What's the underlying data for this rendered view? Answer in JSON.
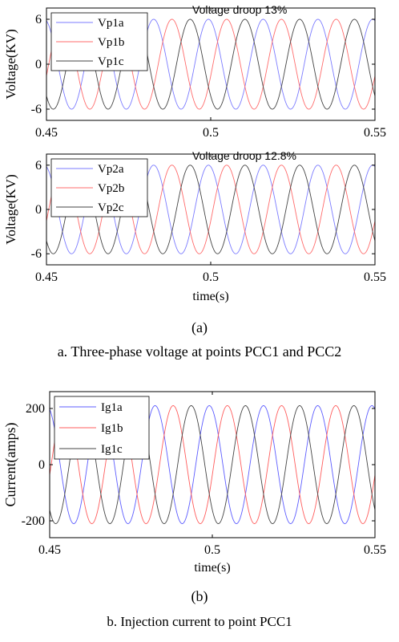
{
  "charts": [
    {
      "type": "line",
      "ylabel": "Voltage(KV)",
      "xlabel": "",
      "xlim": [
        0.45,
        0.55
      ],
      "ylim": [
        -7.5,
        7.5
      ],
      "xticks": [
        0.45,
        0.5,
        0.55
      ],
      "xtick_labels": [
        "0.45",
        "0.5",
        "0.55"
      ],
      "yticks": [
        -6,
        0,
        6
      ],
      "ytick_labels": [
        "-6",
        "0",
        "6"
      ],
      "annotation": "Voltage droop 13%",
      "legend_position": "top-left",
      "series": [
        {
          "name": "Vp1a",
          "color": "#7b7bff",
          "amplitude": 6.0,
          "frequency_hz": 60,
          "phase_deg": 105
        },
        {
          "name": "Vp1b",
          "color": "#ff6b6b",
          "amplitude": 6.0,
          "frequency_hz": 60,
          "phase_deg": -15
        },
        {
          "name": "Vp1c",
          "color": "#444444",
          "amplitude": 6.0,
          "frequency_hz": 60,
          "phase_deg": -135
        }
      ]
    },
    {
      "type": "line",
      "ylabel": "Voltage(KV)",
      "xlabel": "time(s)",
      "xlim": [
        0.45,
        0.55
      ],
      "ylim": [
        -7.5,
        7.5
      ],
      "xticks": [
        0.45,
        0.5,
        0.55
      ],
      "xtick_labels": [
        "0.45",
        "0.5",
        "0.55"
      ],
      "yticks": [
        -6,
        0,
        6
      ],
      "ytick_labels": [
        "-6",
        "0",
        "6"
      ],
      "annotation": "Voltage droop 12.8%",
      "legend_position": "top-left",
      "series": [
        {
          "name": "Vp2a",
          "color": "#7b7bff",
          "amplitude": 6.0,
          "frequency_hz": 60,
          "phase_deg": 105
        },
        {
          "name": "Vp2b",
          "color": "#ff6b6b",
          "amplitude": 6.0,
          "frequency_hz": 60,
          "phase_deg": -15
        },
        {
          "name": "Vp2c",
          "color": "#444444",
          "amplitude": 6.0,
          "frequency_hz": 60,
          "phase_deg": -135
        }
      ]
    },
    {
      "type": "line",
      "ylabel": "Current(amps)",
      "xlabel": "time(s)",
      "xlim": [
        0.45,
        0.55
      ],
      "ylim": [
        -260,
        260
      ],
      "xticks": [
        0.45,
        0.5,
        0.55
      ],
      "xtick_labels": [
        "0.45",
        "0.5",
        "0.55"
      ],
      "yticks": [
        -200,
        0,
        200
      ],
      "ytick_labels": [
        "-200",
        "0",
        "200"
      ],
      "annotation": "",
      "legend_position": "top-left",
      "series": [
        {
          "name": "Ig1a",
          "color": "#5c5cff",
          "amplitude": 210,
          "frequency_hz": 60,
          "phase_deg": 110
        },
        {
          "name": "Ig1b",
          "color": "#ff5c5c",
          "amplitude": 210,
          "frequency_hz": 60,
          "phase_deg": -10
        },
        {
          "name": "Ig1c",
          "color": "#444444",
          "amplitude": 210,
          "frequency_hz": 60,
          "phase_deg": -130
        }
      ]
    }
  ],
  "captions": {
    "label_a": "(a)",
    "caption_a": "a. Three-phase voltage at points PCC1 and PCC2",
    "label_b": "(b)",
    "caption_b": "b. Injection current to point PCC1"
  }
}
